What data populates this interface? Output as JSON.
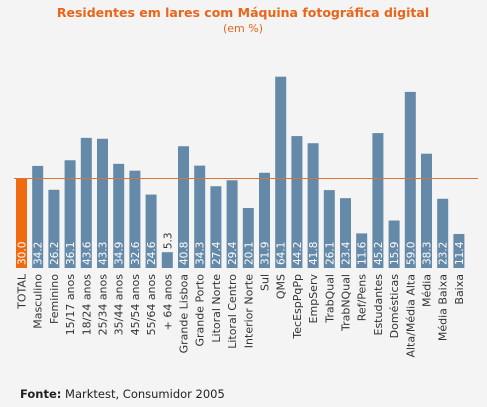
{
  "chart_data": {
    "type": "bar",
    "title": "Residentes em lares com Máquina fotográfica digital",
    "subtitle": "(em %)",
    "categories": [
      "TOTAL",
      "Masculino",
      "Feminino",
      "15/17 anos",
      "18/24 anos",
      "25/34 anos",
      "35/44 anos",
      "45/54 anos",
      "55/64 anos",
      "+ 64 anos",
      "Grande Lisboa",
      "Grande Porto",
      "Litoral Norte",
      "Litoral Centro",
      "Interior Norte",
      "Sul",
      "QMS",
      "TecEspPqPp",
      "EmpServ",
      "TrabQual",
      "TrabNQual",
      "Ref/Pens",
      "Estudantes",
      "Domésticas",
      "Alta/Média Alta",
      "Média",
      "Média Baixa",
      "Baixa"
    ],
    "values": [
      30.0,
      34.2,
      26.2,
      36.1,
      43.6,
      43.3,
      34.9,
      32.6,
      24.6,
      5.3,
      40.8,
      34.3,
      27.4,
      29.4,
      20.1,
      31.9,
      64.1,
      44.2,
      41.8,
      26.1,
      23.4,
      11.6,
      45.2,
      15.9,
      59.0,
      38.3,
      23.2,
      11.4
    ],
    "value_labels": [
      "30.0",
      "34.2",
      "26.2",
      "36.1",
      "43.6",
      "43.3",
      "34.9",
      "32.6",
      "24.6",
      "5.3",
      "40.8",
      "34.3",
      "27.4",
      "29.4",
      "20.1",
      "31.9",
      "64.1",
      "44.2",
      "41.8",
      "26.1",
      "23.4",
      "11.6",
      "45.2",
      "15.9",
      "59.0",
      "38.3",
      "23.2",
      "11.4"
    ],
    "reference_line": 30.0,
    "ylim": [
      0,
      66
    ],
    "grid": false,
    "legend": "none",
    "colors": {
      "highlight": "#f06a10",
      "bar": "#6589a8",
      "title": "#e8651a",
      "reference_line": "#d8743a",
      "value_text_dark": "#ffffff",
      "value_text_light": "#333333"
    }
  },
  "footer": {
    "source_label": "Fonte:",
    "source_text": "Marktest, Consumidor 2005"
  }
}
